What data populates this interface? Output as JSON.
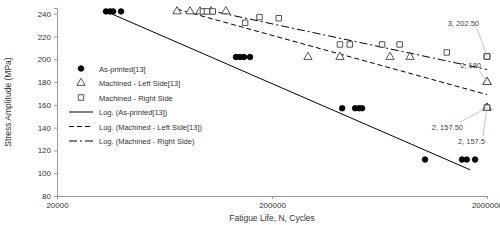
{
  "chart_data": {
    "type": "scatter",
    "x_label": "Fatigue Life, N, Cycles",
    "y_label": "Stress Amplitude (MPa)",
    "log": "x",
    "xlim": [
      20000,
      2000000
    ],
    "xticks": [
      20000,
      200000,
      2000000
    ],
    "ylim": [
      80,
      245
    ],
    "yticks": [
      80,
      100,
      120,
      140,
      160,
      180,
      200,
      220,
      240
    ],
    "legend": "left",
    "series": [
      {
        "name": "As-printed[13]",
        "type": "scatter",
        "marker": "circle",
        "color": "#000000",
        "x": [
          33800,
          35300,
          36500,
          39700,
          136000,
          142000,
          148000,
          158000,
          424000,
          487000,
          508000,
          525000,
          1030000,
          1530000,
          1610000,
          1760000
        ],
        "values": [
          242,
          242,
          242,
          242,
          202,
          202,
          202,
          202,
          157,
          157,
          157,
          157,
          112,
          112,
          112,
          112
        ]
      },
      {
        "name": "Machined - Left Side[13]",
        "type": "scatter",
        "marker": "triangle",
        "color": "#404040",
        "x": [
          72300,
          83100,
          92500,
          104000,
          122000,
          294000,
          414000,
          708000,
          877000,
          2000000,
          2000000,
          2000000,
          2000000
        ],
        "values": [
          242,
          242,
          242,
          242,
          242,
          202,
          202,
          202,
          202,
          180,
          180,
          157.5,
          157.5
        ]
      },
      {
        "name": "Machined - Right Side",
        "type": "scatter",
        "marker": "square",
        "color": "#404040",
        "x": [
          95500,
          99700,
          106000,
          150000,
          175000,
          215000,
          414000,
          460000,
          650000,
          785000,
          1300000,
          2000000,
          2000000,
          2000000,
          2000000,
          2000000
        ],
        "values": [
          242,
          242,
          242,
          232,
          237,
          236,
          213,
          213,
          213,
          213,
          206,
          202.5,
          202.5,
          202.5,
          157.5,
          157.5
        ]
      },
      {
        "name": "Log. (As-printed[13])",
        "type": "line",
        "line_style": "solid",
        "color": "#000000",
        "x": [
          33800,
          1670000
        ],
        "values": [
          242,
          103
        ]
      },
      {
        "name": "Log. (Machined - Left Side[13])",
        "type": "line",
        "line_style": "dashed",
        "color": "#000000",
        "x": [
          72300,
          2000000
        ],
        "values": [
          244,
          169
        ]
      },
      {
        "name": "Log. (Machined - Right Side)",
        "type": "line",
        "line_style": "dashdot",
        "color": "#000000",
        "x": [
          95500,
          2000000
        ],
        "values": [
          244,
          191
        ]
      }
    ],
    "annotations": [
      {
        "text": "3, 202.50",
        "x": 2000000,
        "y": 202.5
      },
      {
        "text": "2, 180",
        "x": 2000000,
        "y": 180
      },
      {
        "text": "2, 157.50",
        "x": 2000000,
        "y": 157.5
      },
      {
        "text": "2, 157.5",
        "x": 2000000,
        "y": 157.5
      }
    ]
  }
}
